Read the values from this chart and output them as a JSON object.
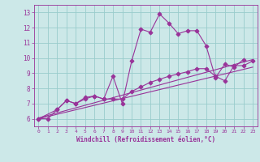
{
  "background_color": "#cce8e8",
  "grid_color": "#99cccc",
  "line_color": "#993399",
  "marker": "D",
  "xlabel": "Windchill (Refroidissement éolien,°C)",
  "xlabel_color": "#993399",
  "tick_color": "#993399",
  "xlim": [
    -0.5,
    23.5
  ],
  "ylim": [
    5.5,
    13.5
  ],
  "yticks": [
    6,
    7,
    8,
    9,
    10,
    11,
    12,
    13
  ],
  "xticks": [
    0,
    1,
    2,
    3,
    4,
    5,
    6,
    7,
    8,
    9,
    10,
    11,
    12,
    13,
    14,
    15,
    16,
    17,
    18,
    19,
    20,
    21,
    22,
    23
  ],
  "line1_x": [
    0,
    1,
    2,
    3,
    4,
    5,
    6,
    7,
    8,
    9,
    10,
    11,
    12,
    13,
    14,
    15,
    16,
    17,
    18,
    19,
    20,
    21,
    22
  ],
  "line1_y": [
    6.0,
    6.0,
    6.6,
    7.2,
    7.0,
    7.4,
    7.5,
    7.3,
    8.8,
    7.0,
    9.8,
    11.9,
    11.7,
    12.9,
    12.3,
    11.6,
    11.8,
    11.8,
    10.8,
    8.7,
    9.6,
    9.4,
    9.9
  ],
  "line2_x": [
    0,
    2,
    3,
    4,
    5,
    6,
    7,
    8,
    9,
    10,
    11,
    12,
    13,
    14,
    15,
    16,
    17,
    18,
    19,
    20,
    21,
    22,
    23
  ],
  "line2_y": [
    6.0,
    6.6,
    7.2,
    7.0,
    7.3,
    7.5,
    7.3,
    7.3,
    7.3,
    7.8,
    8.1,
    8.4,
    8.6,
    8.8,
    8.95,
    9.1,
    9.3,
    9.3,
    8.8,
    8.5,
    9.5,
    9.5,
    9.8
  ],
  "line3_x": [
    0,
    23
  ],
  "line3_y": [
    6.05,
    9.9
  ],
  "line4_x": [
    0,
    23
  ],
  "line4_y": [
    6.0,
    9.4
  ]
}
